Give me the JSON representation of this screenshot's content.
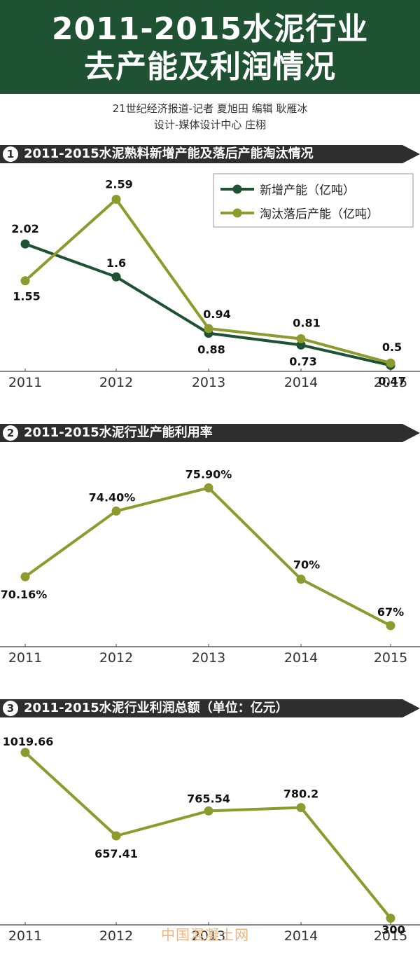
{
  "header": {
    "title_line1": "2011-2015水泥行业",
    "title_line2": "去产能及利润情况"
  },
  "credits": {
    "line1": "21世纪经济报道-记者  夏旭田     编辑  耿雁冰",
    "line2": "设计-媒体设计中心  庄栩"
  },
  "sections": [
    {
      "num": "1",
      "title": "2011-2015水泥熟料新增产能及落后产能淘汰情况"
    },
    {
      "num": "2",
      "title": "2011-2015水泥行业产能利用率"
    },
    {
      "num": "3",
      "title": "2011-2015水泥行业利润总额（单位：亿元）"
    }
  ],
  "watermark": "中国混凝土网",
  "colors": {
    "dark_green": "#1e5232",
    "olive": "#8c9b2e",
    "bar": "#2e2e2e"
  },
  "chart_data": [
    {
      "type": "line",
      "title": "2011-2015水泥熟料新增产能及落后产能淘汰情况",
      "x": [
        "2011",
        "2012",
        "2013",
        "2014",
        "2015"
      ],
      "series": [
        {
          "name": "新增产能（亿吨）",
          "color": "#1e5232",
          "values": [
            2.02,
            1.6,
            0.88,
            0.73,
            0.47
          ],
          "labels": [
            "2.02",
            "1.6",
            "0.88",
            "0.73",
            "0.47"
          ]
        },
        {
          "name": "淘汰落后产能（亿吨）",
          "color": "#8c9b2e",
          "values": [
            1.55,
            2.59,
            0.94,
            0.81,
            0.5
          ],
          "labels": [
            "1.55",
            "2.59",
            "0.94",
            "0.81",
            "0.5"
          ]
        }
      ],
      "ylim": [
        0,
        2.8
      ],
      "legend": "top-right",
      "grid": false
    },
    {
      "type": "line",
      "title": "2011-2015水泥行业产能利用率",
      "x": [
        "2011",
        "2012",
        "2013",
        "2014",
        "2015"
      ],
      "series": [
        {
          "color": "#8c9b2e",
          "values": [
            70.16,
            74.4,
            75.9,
            70,
            67
          ],
          "labels": [
            "70.16%",
            "74.40%",
            "75.90%",
            "70%",
            "67%"
          ]
        }
      ],
      "ylim": [
        66,
        77
      ],
      "grid": false
    },
    {
      "type": "line",
      "title": "2011-2015水泥行业利润总额（单位：亿元）",
      "x": [
        "2011",
        "2012",
        "2013",
        "2014",
        "2015"
      ],
      "series": [
        {
          "color": "#8c9b2e",
          "values": [
            1019.66,
            657.41,
            765.54,
            780.2,
            300
          ],
          "labels": [
            "1019.66",
            "657.41",
            "765.54",
            "780.2",
            "300"
          ]
        }
      ],
      "ylim": [
        250,
        1080
      ],
      "grid": false
    }
  ]
}
